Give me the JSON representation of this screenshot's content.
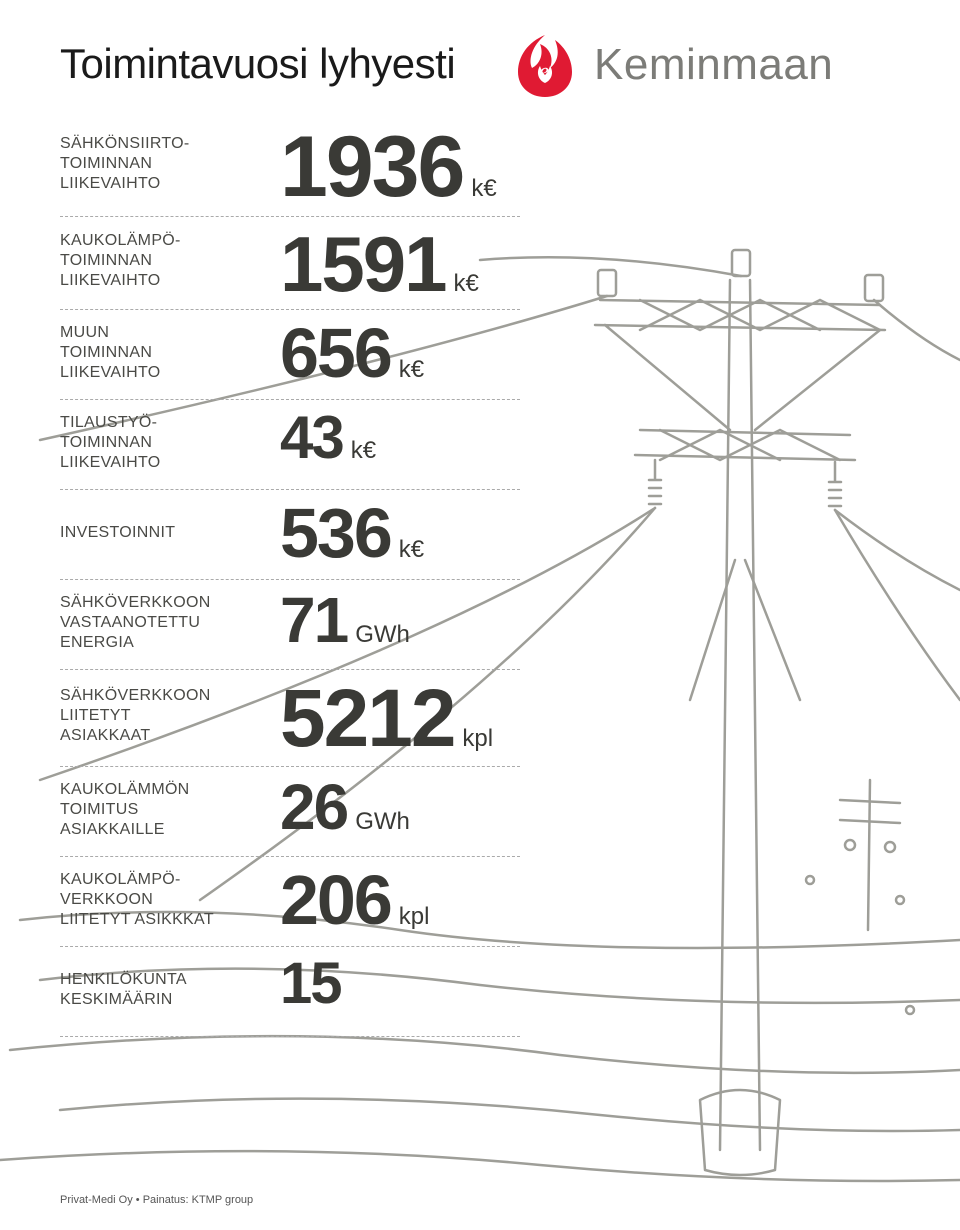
{
  "page": {
    "title": "Toimintavuosi lyhyesti",
    "brand": "Keminmaan",
    "footer": "Privat-Medi Oy • Painatus: KTMP group",
    "colors": {
      "title": "#1a1a1a",
      "label": "#4a4a46",
      "value": "#3a3a36",
      "unit": "#3a3a36",
      "brand_text": "#7c7c78",
      "brand_red": "#e01a33",
      "divider": "#aaaaaa",
      "background": "#ffffff",
      "line_art": "#9e9e98"
    },
    "typography": {
      "title_fontsize": 42,
      "label_fontsize": 16,
      "unit_fontsize": 24,
      "brand_fontsize": 44,
      "footer_fontsize": 11
    }
  },
  "rows": [
    {
      "label": "SÄHKÖNSIIRTO-\nTOIMINNAN\nLIIKEVAIHTO",
      "value": "1936",
      "unit": "k€",
      "value_fontsize": 86
    },
    {
      "label": "KAUKOLÄMPÖ-\nTOIMINNAN\nLIIKEVAIHTO",
      "value": "1591",
      "unit": "k€",
      "value_fontsize": 78
    },
    {
      "label": "MUUN\nTOIMINNAN\nLIIKEVAIHTO",
      "value": "656",
      "unit": "k€",
      "value_fontsize": 70
    },
    {
      "label": "TILAUSTYÖ-\nTOIMINNAN\nLIIKEVAIHTO",
      "value": "43",
      "unit": "k€",
      "value_fontsize": 60
    },
    {
      "label": "INVESTOINNIT",
      "value": "536",
      "unit": "k€",
      "value_fontsize": 70
    },
    {
      "label": "SÄHKÖVERKKOON\nVASTAANOTETTU\nENERGIA",
      "value": "71",
      "unit": "GWh",
      "value_fontsize": 64
    },
    {
      "label": "SÄHKÖVERKKOON\nLIITETYT\nASIAKKAAT",
      "value": "5212",
      "unit": "kpl",
      "value_fontsize": 82
    },
    {
      "label": "KAUKOLÄMMÖN\nTOIMITUS\nASIAKKAILLE",
      "value": "26",
      "unit": "GWh",
      "value_fontsize": 64
    },
    {
      "label": "KAUKOLÄMPÖ-\nVERKKOON\nLIITETYT ASIKKKAT",
      "value": "206",
      "unit": "kpl",
      "value_fontsize": 70
    },
    {
      "label": "HENKILÖKUNTA\nKESKIMÄÄRIN",
      "value": "15",
      "unit": "",
      "value_fontsize": 58
    }
  ]
}
